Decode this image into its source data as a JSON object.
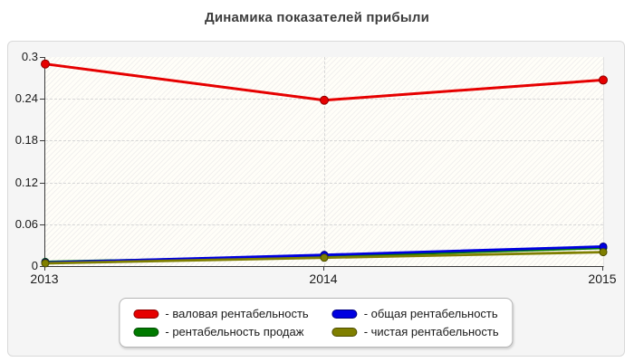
{
  "title": "Динамика показателей прибыли",
  "chart_data": {
    "type": "line",
    "x_labels": [
      "2013",
      "2014",
      "2015"
    ],
    "y_tick_labels": [
      "0",
      "0.06",
      "0.12",
      "0.18",
      "0.24",
      "0.3"
    ],
    "y_ticks": [
      0,
      0.06,
      0.12,
      0.18,
      0.24,
      0.3
    ],
    "ylim": [
      0,
      0.3
    ],
    "grid": true,
    "legend_position": "bottom-center",
    "series": [
      {
        "name": "валовая рентабельность",
        "legend_label": "- валовая рентабельность",
        "color": "#e60000",
        "edge_color": "#8b0000",
        "values": [
          0.29,
          0.238,
          0.267
        ]
      },
      {
        "name": "рентабельность продаж",
        "legend_label": "- рентабельность продаж",
        "color": "#007a00",
        "edge_color": "#004d00",
        "values": [
          0.006,
          0.014,
          0.026
        ]
      },
      {
        "name": "общая рентабельность",
        "legend_label": "- общая рентабельность",
        "color": "#0000e0",
        "edge_color": "#000080",
        "values": [
          0.005,
          0.016,
          0.028
        ]
      },
      {
        "name": "чистая рентабельность",
        "legend_label": "- чистая рентабельность",
        "color": "#7f7f00",
        "edge_color": "#4d4d00",
        "values": [
          0.004,
          0.012,
          0.02
        ]
      }
    ]
  }
}
